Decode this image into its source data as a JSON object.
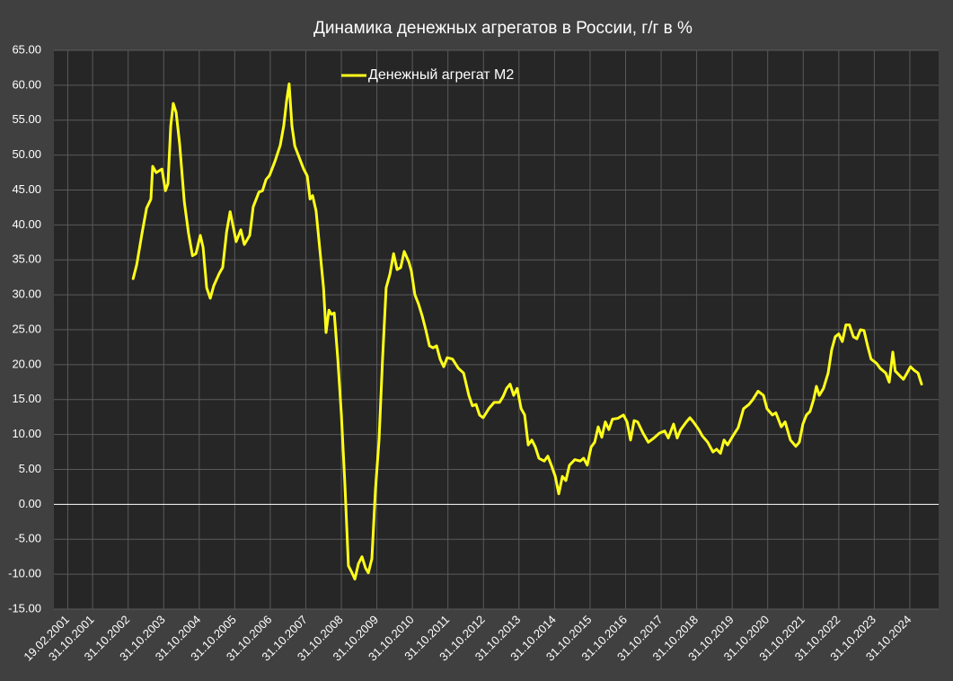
{
  "chart_data": {
    "type": "line",
    "title": "Динамика денежных агрегатов  в России, г/г в %",
    "legend": "top",
    "grid": true,
    "xlim": [
      2000.74,
      2025.64
    ],
    "ylim": [
      -15,
      65
    ],
    "yticks": [
      {
        "value": 65,
        "label": "65.00"
      },
      {
        "value": 60,
        "label": "60.00"
      },
      {
        "value": 55,
        "label": "55.00"
      },
      {
        "value": 50,
        "label": "50.00"
      },
      {
        "value": 45,
        "label": "45.00"
      },
      {
        "value": 40,
        "label": "40.00"
      },
      {
        "value": 35,
        "label": "35.00"
      },
      {
        "value": 30,
        "label": "30.00"
      },
      {
        "value": 25,
        "label": "25.00"
      },
      {
        "value": 20,
        "label": "20.00"
      },
      {
        "value": 15,
        "label": "15.00"
      },
      {
        "value": 10,
        "label": "10.00"
      },
      {
        "value": 5,
        "label": "5.00"
      },
      {
        "value": 0,
        "label": "0.00"
      },
      {
        "value": -5,
        "label": "-5.00"
      },
      {
        "value": -10,
        "label": "-10.00"
      },
      {
        "value": -15,
        "label": "-15.00"
      }
    ],
    "xticks": [
      {
        "value": 2001.13,
        "label": "19.02.2001"
      },
      {
        "value": 2001.83,
        "label": "31.10.2001"
      },
      {
        "value": 2002.83,
        "label": "31.10.2002"
      },
      {
        "value": 2003.83,
        "label": "31.10.2003"
      },
      {
        "value": 2004.83,
        "label": "31.10.2004"
      },
      {
        "value": 2005.83,
        "label": "31.10.2005"
      },
      {
        "value": 2006.83,
        "label": "31.10.2006"
      },
      {
        "value": 2007.83,
        "label": "31.10.2007"
      },
      {
        "value": 2008.83,
        "label": "31.10.2008"
      },
      {
        "value": 2009.83,
        "label": "31.10.2009"
      },
      {
        "value": 2010.83,
        "label": "31.10.2010"
      },
      {
        "value": 2011.83,
        "label": "31.10.2011"
      },
      {
        "value": 2012.83,
        "label": "31.10.2012"
      },
      {
        "value": 2013.83,
        "label": "31.10.2013"
      },
      {
        "value": 2014.83,
        "label": "31.10.2014"
      },
      {
        "value": 2015.83,
        "label": "31.10.2015"
      },
      {
        "value": 2016.83,
        "label": "31.10.2016"
      },
      {
        "value": 2017.83,
        "label": "31.10.2017"
      },
      {
        "value": 2018.83,
        "label": "31.10.2018"
      },
      {
        "value": 2019.83,
        "label": "31.10.2019"
      },
      {
        "value": 2020.83,
        "label": "31.10.2020"
      },
      {
        "value": 2021.83,
        "label": "31.10.2021"
      },
      {
        "value": 2022.83,
        "label": "31.10.2022"
      },
      {
        "value": 2023.83,
        "label": "31.10.2023"
      },
      {
        "value": 2024.83,
        "label": "31.10.2024"
      }
    ],
    "x": [
      2002.97,
      2003.07,
      2003.22,
      2003.35,
      2003.47,
      2003.52,
      2003.62,
      2003.78,
      2003.88,
      2003.95,
      2004.03,
      2004.1,
      2004.18,
      2004.28,
      2004.41,
      2004.53,
      2004.64,
      2004.74,
      2004.86,
      2004.94,
      2005.04,
      2005.14,
      2005.24,
      2005.39,
      2005.49,
      2005.6,
      2005.7,
      2005.8,
      2005.87,
      2006.0,
      2006.1,
      2006.25,
      2006.35,
      2006.51,
      2006.61,
      2006.71,
      2006.81,
      2006.96,
      2007.11,
      2007.21,
      2007.29,
      2007.36,
      2007.44,
      2007.52,
      2007.64,
      2007.77,
      2007.87,
      2007.95,
      2008.02,
      2008.12,
      2008.23,
      2008.33,
      2008.4,
      2008.48,
      2008.55,
      2008.63,
      2008.73,
      2008.83,
      2008.93,
      2009.03,
      2009.13,
      2009.21,
      2009.31,
      2009.41,
      2009.51,
      2009.59,
      2009.69,
      2009.79,
      2009.89,
      2009.99,
      2010.09,
      2010.2,
      2010.3,
      2010.4,
      2010.5,
      2010.6,
      2010.73,
      2010.8,
      2010.9,
      2011.0,
      2011.11,
      2011.21,
      2011.31,
      2011.41,
      2011.51,
      2011.61,
      2011.71,
      2011.81,
      2011.96,
      2012.12,
      2012.27,
      2012.42,
      2012.52,
      2012.62,
      2012.72,
      2012.82,
      2012.98,
      2013.13,
      2013.28,
      2013.38,
      2013.48,
      2013.58,
      2013.68,
      2013.78,
      2013.89,
      2013.99,
      2014.09,
      2014.19,
      2014.29,
      2014.39,
      2014.54,
      2014.64,
      2014.74,
      2014.85,
      2014.95,
      2015.05,
      2015.15,
      2015.25,
      2015.4,
      2015.55,
      2015.65,
      2015.75,
      2015.86,
      2015.96,
      2016.06,
      2016.16,
      2016.26,
      2016.36,
      2016.46,
      2016.61,
      2016.77,
      2016.87,
      2016.97,
      2017.07,
      2017.17,
      2017.32,
      2017.47,
      2017.63,
      2017.78,
      2017.93,
      2018.03,
      2018.18,
      2018.28,
      2018.38,
      2018.54,
      2018.64,
      2018.74,
      2018.89,
      2018.99,
      2019.14,
      2019.29,
      2019.39,
      2019.5,
      2019.6,
      2019.7,
      2019.85,
      2020.0,
      2020.15,
      2020.3,
      2020.41,
      2020.56,
      2020.71,
      2020.81,
      2020.96,
      2021.06,
      2021.21,
      2021.32,
      2021.47,
      2021.62,
      2021.72,
      2021.82,
      2021.92,
      2022.02,
      2022.12,
      2022.2,
      2022.28,
      2022.4,
      2022.53,
      2022.63,
      2022.73,
      2022.83,
      2022.93,
      2023.03,
      2023.13,
      2023.24,
      2023.34,
      2023.44,
      2023.54,
      2023.64,
      2023.74,
      2023.89,
      2023.99,
      2024.15,
      2024.25,
      2024.35,
      2024.42,
      2024.55,
      2024.65,
      2024.75,
      2024.85,
      2024.95,
      2025.06,
      2025.16
    ],
    "series": [
      {
        "name": "Денежный агрегат М2",
        "color": "#ffff1a",
        "values": [
          32.3,
          34.3,
          38.8,
          42.4,
          43.7,
          48.4,
          47.5,
          48.0,
          44.9,
          45.9,
          54.2,
          57.4,
          56.1,
          51.6,
          43.3,
          38.8,
          35.6,
          35.9,
          38.5,
          36.8,
          31.0,
          29.5,
          31.3,
          33.0,
          33.9,
          39.0,
          41.9,
          39.4,
          37.6,
          39.3,
          37.2,
          38.5,
          42.6,
          44.7,
          44.9,
          46.5,
          47.1,
          49.1,
          51.4,
          54.2,
          57.8,
          60.2,
          54.2,
          51.3,
          49.7,
          48.0,
          47.0,
          43.7,
          44.2,
          42.0,
          36.2,
          31.0,
          24.6,
          27.8,
          27.2,
          27.4,
          20.8,
          13.0,
          2.8,
          -8.8,
          -9.8,
          -10.7,
          -8.5,
          -7.5,
          -9.1,
          -9.8,
          -7.8,
          2.1,
          9.2,
          20.8,
          31.0,
          33.0,
          35.9,
          33.6,
          33.9,
          36.2,
          34.7,
          33.4,
          30.0,
          28.7,
          26.9,
          24.9,
          22.7,
          22.4,
          22.7,
          20.8,
          19.7,
          21.0,
          20.8,
          19.5,
          18.8,
          15.6,
          14.1,
          14.3,
          12.8,
          12.4,
          13.7,
          14.6,
          14.6,
          15.4,
          16.6,
          17.2,
          15.6,
          16.6,
          13.7,
          12.8,
          8.5,
          9.2,
          8.2,
          6.6,
          6.2,
          6.9,
          5.6,
          4.0,
          1.5,
          4.0,
          3.4,
          5.6,
          6.4,
          6.2,
          6.6,
          5.6,
          8.2,
          8.9,
          11.1,
          9.6,
          11.8,
          10.7,
          12.2,
          12.3,
          12.8,
          11.8,
          9.2,
          12.0,
          11.8,
          10.2,
          8.9,
          9.5,
          10.2,
          10.5,
          9.5,
          11.5,
          9.5,
          10.7,
          11.8,
          12.4,
          11.8,
          10.7,
          9.8,
          8.9,
          7.5,
          7.9,
          7.3,
          9.2,
          8.5,
          9.8,
          11.0,
          13.7,
          14.3,
          15.0,
          16.2,
          15.6,
          13.7,
          12.8,
          13.1,
          11.1,
          11.8,
          9.2,
          8.3,
          8.9,
          11.5,
          12.8,
          13.3,
          15.0,
          16.9,
          15.6,
          16.6,
          18.8,
          22.1,
          24.0,
          24.4,
          23.3,
          25.7,
          25.7,
          24.0,
          23.7,
          25.0,
          24.9,
          22.7,
          20.8,
          20.2,
          19.5,
          18.8,
          17.5,
          21.8,
          19.1,
          18.4,
          17.9,
          18.8,
          19.7,
          19.2,
          18.8,
          17.2
        ]
      }
    ]
  }
}
